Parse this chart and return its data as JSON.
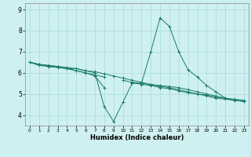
{
  "bg_color": "#cff0f0",
  "grid_color": "#a8dada",
  "line_color": "#1a7a6e",
  "xlabel": "Humidex (Indice chaleur)",
  "xlim": [
    -0.5,
    23.5
  ],
  "ylim": [
    3.5,
    9.3
  ],
  "yticks": [
    4,
    5,
    6,
    7,
    8,
    9
  ],
  "xticks": [
    0,
    1,
    2,
    3,
    4,
    5,
    6,
    7,
    8,
    9,
    10,
    11,
    12,
    13,
    14,
    15,
    16,
    17,
    18,
    19,
    20,
    21,
    22,
    23
  ],
  "series": [
    {
      "x": [
        0,
        1,
        2,
        3,
        4,
        5,
        6,
        7,
        8,
        9,
        10,
        11,
        12,
        13,
        14,
        15,
        16,
        17,
        18,
        19,
        20,
        21,
        22,
        23
      ],
      "y": [
        6.5,
        6.4,
        6.3,
        6.3,
        6.2,
        6.2,
        6.1,
        6.0,
        4.4,
        3.7,
        4.6,
        5.5,
        5.5,
        7.0,
        8.6,
        8.2,
        7.0,
        6.15,
        5.8,
        5.4,
        5.1,
        4.8,
        4.7,
        4.65
      ]
    },
    {
      "x": [
        0,
        1,
        2,
        3,
        4,
        5,
        6,
        7,
        8,
        9,
        10,
        11,
        12,
        13,
        14,
        15,
        16,
        17,
        18,
        19,
        20,
        21,
        22,
        23
      ],
      "y": [
        6.5,
        6.35,
        6.3,
        6.25,
        6.2,
        6.1,
        6.0,
        5.85,
        5.3,
        null,
        null,
        5.55,
        5.5,
        5.45,
        5.4,
        5.35,
        5.3,
        5.2,
        5.1,
        5.0,
        4.9,
        4.8,
        4.75,
        4.7
      ]
    },
    {
      "x": [
        0,
        1,
        2,
        3,
        4,
        5,
        6,
        7,
        8,
        9,
        10,
        11,
        12,
        13,
        14,
        15,
        16,
        17,
        18,
        19,
        20,
        21,
        22,
        23
      ],
      "y": [
        6.5,
        6.4,
        6.35,
        6.3,
        6.25,
        6.2,
        6.1,
        6.05,
        5.95,
        5.85,
        5.75,
        5.65,
        5.55,
        5.45,
        5.35,
        5.3,
        5.2,
        5.1,
        5.0,
        4.9,
        4.8,
        4.75,
        4.7,
        4.65
      ]
    },
    {
      "x": [
        0,
        1,
        2,
        3,
        4,
        5,
        6,
        7,
        8,
        9,
        10,
        11,
        12,
        13,
        14,
        15,
        16,
        17,
        18,
        19,
        20,
        21,
        22,
        23
      ],
      "y": [
        6.5,
        6.4,
        6.35,
        6.3,
        6.2,
        6.1,
        6.0,
        5.9,
        5.8,
        null,
        5.65,
        5.55,
        5.45,
        5.4,
        5.3,
        5.25,
        5.15,
        5.05,
        5.0,
        4.95,
        4.85,
        4.8,
        4.7,
        4.65
      ]
    }
  ]
}
